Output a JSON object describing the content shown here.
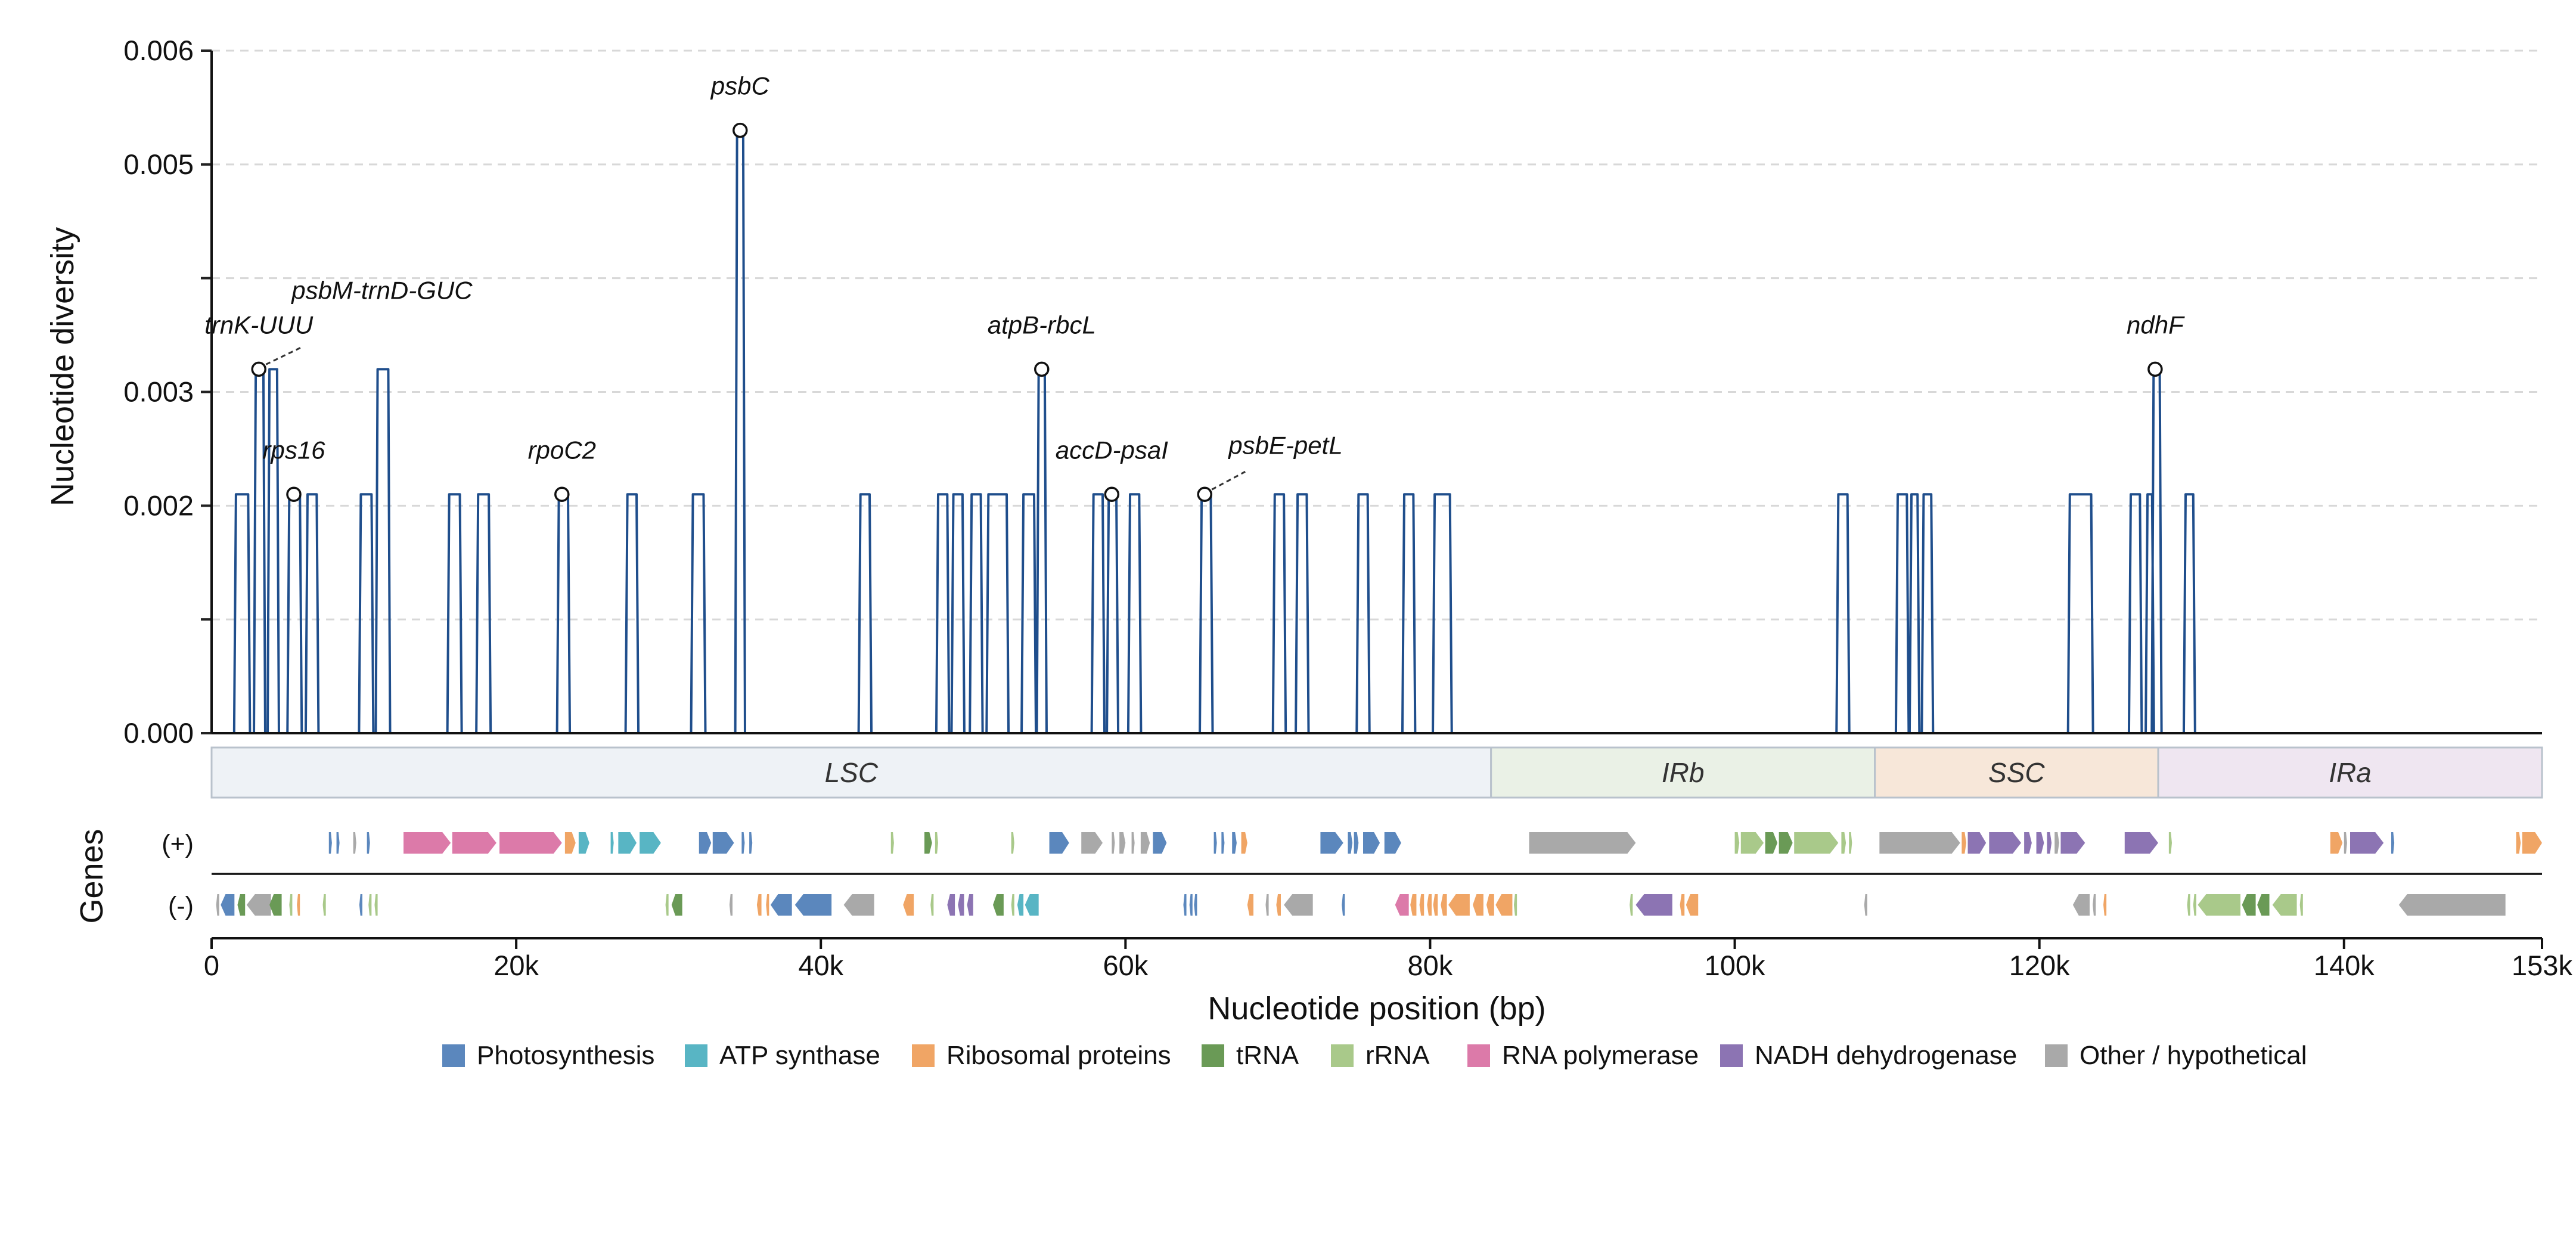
{
  "chart_data": {
    "type": "line",
    "ylabel": "Nucleotide diversity",
    "xlabel": "Nucleotide position (bp)",
    "xlim": [
      0,
      153000
    ],
    "ylim": [
      0,
      0.006
    ],
    "yticks": [
      0.0,
      0.001,
      0.002,
      0.003,
      0.004,
      0.005,
      0.006
    ],
    "ytick_labels": [
      "0.000",
      "",
      "0.002",
      "0.003",
      "",
      "0.005",
      "0.006"
    ],
    "xticks": [
      0,
      20000,
      40000,
      60000,
      80000,
      100000,
      120000,
      140000,
      153000
    ],
    "xtick_labels": [
      "0",
      "20k",
      "40k",
      "60k",
      "80k",
      "100k",
      "120k",
      "140k",
      "153k"
    ],
    "grid": "horizontal dashed",
    "series": [
      {
        "color": "#1f4e8c",
        "windows": [
          {
            "start": 1600,
            "end": 2400,
            "value": 0.0021
          },
          {
            "start": 2900,
            "end": 3400,
            "value": 0.0032
          },
          {
            "start": 3800,
            "end": 4300,
            "value": 0.0032
          },
          {
            "start": 5100,
            "end": 5800,
            "value": 0.0021
          },
          {
            "start": 6300,
            "end": 6900,
            "value": 0.0021
          },
          {
            "start": 9800,
            "end": 10500,
            "value": 0.0021
          },
          {
            "start": 10900,
            "end": 11600,
            "value": 0.0032
          },
          {
            "start": 15600,
            "end": 16300,
            "value": 0.0021
          },
          {
            "start": 17500,
            "end": 18200,
            "value": 0.0021
          },
          {
            "start": 22800,
            "end": 23400,
            "value": 0.0021
          },
          {
            "start": 27300,
            "end": 27900,
            "value": 0.0021
          },
          {
            "start": 31600,
            "end": 32300,
            "value": 0.0021
          },
          {
            "start": 34500,
            "end": 34900,
            "value": 0.0053
          },
          {
            "start": 42600,
            "end": 43200,
            "value": 0.0021
          },
          {
            "start": 47700,
            "end": 48300,
            "value": 0.0021
          },
          {
            "start": 48700,
            "end": 49300,
            "value": 0.0021
          },
          {
            "start": 49900,
            "end": 50500,
            "value": 0.0021
          },
          {
            "start": 51000,
            "end": 52200,
            "value": 0.0021
          },
          {
            "start": 53300,
            "end": 54000,
            "value": 0.0021
          },
          {
            "start": 54300,
            "end": 54700,
            "value": 0.0032
          },
          {
            "start": 57900,
            "end": 58500,
            "value": 0.0021
          },
          {
            "start": 58900,
            "end": 59400,
            "value": 0.0021
          },
          {
            "start": 60300,
            "end": 60900,
            "value": 0.0021
          },
          {
            "start": 65000,
            "end": 65600,
            "value": 0.0021
          },
          {
            "start": 69800,
            "end": 70400,
            "value": 0.0021
          },
          {
            "start": 71300,
            "end": 71900,
            "value": 0.0021
          },
          {
            "start": 75300,
            "end": 75900,
            "value": 0.0021
          },
          {
            "start": 78300,
            "end": 78900,
            "value": 0.0021
          },
          {
            "start": 80300,
            "end": 81300,
            "value": 0.0021
          },
          {
            "start": 106800,
            "end": 107400,
            "value": 0.0021
          },
          {
            "start": 110700,
            "end": 111300,
            "value": 0.0021
          },
          {
            "start": 111600,
            "end": 112000,
            "value": 0.0021
          },
          {
            "start": 112400,
            "end": 112900,
            "value": 0.0021
          },
          {
            "start": 122000,
            "end": 123400,
            "value": 0.0021
          },
          {
            "start": 126000,
            "end": 126600,
            "value": 0.0021
          },
          {
            "start": 127100,
            "end": 127400,
            "value": 0.0021
          },
          {
            "start": 127500,
            "end": 127900,
            "value": 0.0032
          },
          {
            "start": 129600,
            "end": 130100,
            "value": 0.0021
          }
        ]
      }
    ],
    "annotations": [
      {
        "text": "trnK-UUU",
        "x": 3100,
        "y": 0.0032,
        "leader": false
      },
      {
        "text": "psbM-trnD-GUC",
        "x": 11300,
        "y": 0.0032,
        "leader": true
      },
      {
        "text": "rps16",
        "x": 5400,
        "y": 0.0021,
        "leader": false
      },
      {
        "text": "rpoC2",
        "x": 23000,
        "y": 0.0021,
        "leader": false
      },
      {
        "text": "psbC",
        "x": 34700,
        "y": 0.0053,
        "leader": false
      },
      {
        "text": "atpB-rbcL",
        "x": 54500,
        "y": 0.0032,
        "leader": false
      },
      {
        "text": "accD-psaI",
        "x": 59100,
        "y": 0.0021,
        "leader": false
      },
      {
        "text": "psbE-petL",
        "x": 65200,
        "y": 0.0021,
        "leader": true
      },
      {
        "text": "ndhF",
        "x": 127600,
        "y": 0.0032,
        "leader": false
      }
    ],
    "regions": [
      {
        "name": "LSC",
        "start": 0,
        "end": 84000,
        "color": "#eef2f6"
      },
      {
        "name": "IRb",
        "start": 84000,
        "end": 109200,
        "color": "#eaf1e6"
      },
      {
        "name": "SSC",
        "start": 109200,
        "end": 127800,
        "color": "#f7e7d9"
      },
      {
        "name": "IRa",
        "start": 127800,
        "end": 153000,
        "color": "#efe6f1"
      }
    ],
    "genes_axis_label": "Genes",
    "strand_labels": [
      "(+)",
      "(-)"
    ],
    "gene_categories": [
      {
        "key": "photo",
        "name": "Photosynthesis",
        "color": "#5b87bd"
      },
      {
        "key": "atp",
        "name": "ATP synthase",
        "color": "#58b5c4"
      },
      {
        "key": "ribo",
        "name": "Ribosomal proteins",
        "color": "#f0a565"
      },
      {
        "key": "trna",
        "name": "tRNA",
        "color": "#6a9a56"
      },
      {
        "key": "rrna",
        "name": "rRNA",
        "color": "#a9c98a"
      },
      {
        "key": "rpo",
        "name": "RNA polymerase",
        "color": "#dc7aa9"
      },
      {
        "key": "ndh",
        "name": "NADH dehydrogenase",
        "color": "#8c74b3"
      },
      {
        "key": "other",
        "name": "Other / hypothetical",
        "color": "#a9a9a9"
      }
    ],
    "genes_plus": [
      {
        "start": 7700,
        "end": 7900,
        "cat": "photo"
      },
      {
        "start": 8200,
        "end": 8400,
        "cat": "photo"
      },
      {
        "start": 9300,
        "end": 9500,
        "cat": "other"
      },
      {
        "start": 10200,
        "end": 10400,
        "cat": "photo"
      },
      {
        "start": 12600,
        "end": 15700,
        "cat": "rpo"
      },
      {
        "start": 15800,
        "end": 18700,
        "cat": "rpo"
      },
      {
        "start": 18900,
        "end": 23000,
        "cat": "rpo"
      },
      {
        "start": 23200,
        "end": 23900,
        "cat": "ribo"
      },
      {
        "start": 24100,
        "end": 24800,
        "cat": "atp"
      },
      {
        "start": 26200,
        "end": 26400,
        "cat": "atp"
      },
      {
        "start": 26700,
        "end": 27900,
        "cat": "atp"
      },
      {
        "start": 28100,
        "end": 29500,
        "cat": "atp"
      },
      {
        "start": 32000,
        "end": 32800,
        "cat": "photo"
      },
      {
        "start": 32900,
        "end": 34300,
        "cat": "photo"
      },
      {
        "start": 34800,
        "end": 35000,
        "cat": "photo"
      },
      {
        "start": 35300,
        "end": 35500,
        "cat": "photo"
      },
      {
        "start": 44600,
        "end": 44800,
        "cat": "rrna"
      },
      {
        "start": 46800,
        "end": 47300,
        "cat": "trna"
      },
      {
        "start": 47500,
        "end": 47700,
        "cat": "rrna"
      },
      {
        "start": 52500,
        "end": 52700,
        "cat": "rrna"
      },
      {
        "start": 55000,
        "end": 56300,
        "cat": "photo"
      },
      {
        "start": 57100,
        "end": 58500,
        "cat": "other"
      },
      {
        "start": 59100,
        "end": 59300,
        "cat": "other"
      },
      {
        "start": 59600,
        "end": 60000,
        "cat": "other"
      },
      {
        "start": 60400,
        "end": 60600,
        "cat": "other"
      },
      {
        "start": 61000,
        "end": 61600,
        "cat": "other"
      },
      {
        "start": 61800,
        "end": 62700,
        "cat": "photo"
      },
      {
        "start": 65800,
        "end": 66000,
        "cat": "photo"
      },
      {
        "start": 66300,
        "end": 66500,
        "cat": "photo"
      },
      {
        "start": 67000,
        "end": 67300,
        "cat": "photo"
      },
      {
        "start": 67600,
        "end": 68000,
        "cat": "ribo"
      },
      {
        "start": 72800,
        "end": 74300,
        "cat": "photo"
      },
      {
        "start": 74600,
        "end": 74900,
        "cat": "photo"
      },
      {
        "start": 75000,
        "end": 75300,
        "cat": "photo"
      },
      {
        "start": 75600,
        "end": 76700,
        "cat": "photo"
      },
      {
        "start": 77000,
        "end": 78100,
        "cat": "photo"
      },
      {
        "start": 86500,
        "end": 93500,
        "cat": "other"
      },
      {
        "start": 100000,
        "end": 100300,
        "cat": "rrna"
      },
      {
        "start": 100400,
        "end": 101900,
        "cat": "rrna"
      },
      {
        "start": 102000,
        "end": 102800,
        "cat": "trna"
      },
      {
        "start": 102900,
        "end": 103800,
        "cat": "trna"
      },
      {
        "start": 103900,
        "end": 106800,
        "cat": "rrna"
      },
      {
        "start": 107000,
        "end": 107300,
        "cat": "rrna"
      },
      {
        "start": 107500,
        "end": 107700,
        "cat": "rrna"
      },
      {
        "start": 109500,
        "end": 114800,
        "cat": "other"
      },
      {
        "start": 114900,
        "end": 115200,
        "cat": "ribo"
      },
      {
        "start": 115300,
        "end": 116500,
        "cat": "ndh"
      },
      {
        "start": 116700,
        "end": 118800,
        "cat": "ndh"
      },
      {
        "start": 119000,
        "end": 119500,
        "cat": "ndh"
      },
      {
        "start": 119800,
        "end": 120300,
        "cat": "ndh"
      },
      {
        "start": 120500,
        "end": 120800,
        "cat": "ndh"
      },
      {
        "start": 121000,
        "end": 121300,
        "cat": "other"
      },
      {
        "start": 121400,
        "end": 123000,
        "cat": "ndh"
      },
      {
        "start": 125600,
        "end": 127800,
        "cat": "ndh"
      },
      {
        "start": 128500,
        "end": 128700,
        "cat": "rrna"
      },
      {
        "start": 139100,
        "end": 139900,
        "cat": "ribo"
      },
      {
        "start": 140000,
        "end": 140200,
        "cat": "other"
      },
      {
        "start": 140400,
        "end": 142600,
        "cat": "ndh"
      },
      {
        "start": 143100,
        "end": 143300,
        "cat": "photo"
      },
      {
        "start": 151300,
        "end": 151600,
        "cat": "ribo"
      },
      {
        "start": 151700,
        "end": 153000,
        "cat": "ribo"
      }
    ],
    "genes_minus": [
      {
        "start": 300,
        "end": 500,
        "cat": "other"
      },
      {
        "start": 600,
        "end": 1500,
        "cat": "photo"
      },
      {
        "start": 1700,
        "end": 2200,
        "cat": "trna"
      },
      {
        "start": 2300,
        "end": 3900,
        "cat": "other"
      },
      {
        "start": 3800,
        "end": 4600,
        "cat": "trna"
      },
      {
        "start": 5100,
        "end": 5300,
        "cat": "rrna"
      },
      {
        "start": 5600,
        "end": 5800,
        "cat": "ribo"
      },
      {
        "start": 7300,
        "end": 7500,
        "cat": "rrna"
      },
      {
        "start": 9700,
        "end": 9900,
        "cat": "photo"
      },
      {
        "start": 10300,
        "end": 10500,
        "cat": "rrna"
      },
      {
        "start": 10700,
        "end": 10900,
        "cat": "rrna"
      },
      {
        "start": 29800,
        "end": 30000,
        "cat": "rrna"
      },
      {
        "start": 30200,
        "end": 30900,
        "cat": "trna"
      },
      {
        "start": 34000,
        "end": 34200,
        "cat": "other"
      },
      {
        "start": 35800,
        "end": 36100,
        "cat": "ribo"
      },
      {
        "start": 36400,
        "end": 36600,
        "cat": "ribo"
      },
      {
        "start": 36700,
        "end": 38100,
        "cat": "photo"
      },
      {
        "start": 38300,
        "end": 40700,
        "cat": "photo"
      },
      {
        "start": 41500,
        "end": 43500,
        "cat": "other"
      },
      {
        "start": 45400,
        "end": 46100,
        "cat": "ribo"
      },
      {
        "start": 47200,
        "end": 47400,
        "cat": "rrna"
      },
      {
        "start": 48300,
        "end": 48800,
        "cat": "ndh"
      },
      {
        "start": 49000,
        "end": 49400,
        "cat": "ndh"
      },
      {
        "start": 49600,
        "end": 50000,
        "cat": "ndh"
      },
      {
        "start": 51300,
        "end": 52000,
        "cat": "trna"
      },
      {
        "start": 52500,
        "end": 52700,
        "cat": "rrna"
      },
      {
        "start": 52900,
        "end": 53300,
        "cat": "atp"
      },
      {
        "start": 53400,
        "end": 54300,
        "cat": "atp"
      },
      {
        "start": 63800,
        "end": 64000,
        "cat": "photo"
      },
      {
        "start": 64200,
        "end": 64400,
        "cat": "photo"
      },
      {
        "start": 64500,
        "end": 64700,
        "cat": "photo"
      },
      {
        "start": 68000,
        "end": 68400,
        "cat": "ribo"
      },
      {
        "start": 69200,
        "end": 69400,
        "cat": "other"
      },
      {
        "start": 69900,
        "end": 70200,
        "cat": "ribo"
      },
      {
        "start": 70400,
        "end": 72300,
        "cat": "other"
      },
      {
        "start": 74200,
        "end": 74400,
        "cat": "photo"
      },
      {
        "start": 77700,
        "end": 78600,
        "cat": "rpo"
      },
      {
        "start": 78700,
        "end": 79100,
        "cat": "ribo"
      },
      {
        "start": 79300,
        "end": 79600,
        "cat": "ribo"
      },
      {
        "start": 79800,
        "end": 80100,
        "cat": "ribo"
      },
      {
        "start": 80200,
        "end": 80500,
        "cat": "ribo"
      },
      {
        "start": 80700,
        "end": 81100,
        "cat": "ribo"
      },
      {
        "start": 81200,
        "end": 82600,
        "cat": "ribo"
      },
      {
        "start": 82800,
        "end": 83500,
        "cat": "ribo"
      },
      {
        "start": 83700,
        "end": 84200,
        "cat": "ribo"
      },
      {
        "start": 84300,
        "end": 85400,
        "cat": "ribo"
      },
      {
        "start": 85500,
        "end": 85700,
        "cat": "rrna"
      },
      {
        "start": 93100,
        "end": 93300,
        "cat": "rrna"
      },
      {
        "start": 93500,
        "end": 95900,
        "cat": "ndh"
      },
      {
        "start": 96400,
        "end": 96700,
        "cat": "ribo"
      },
      {
        "start": 96800,
        "end": 97600,
        "cat": "ribo"
      },
      {
        "start": 108500,
        "end": 108700,
        "cat": "other"
      },
      {
        "start": 122200,
        "end": 123300,
        "cat": "other"
      },
      {
        "start": 123500,
        "end": 123700,
        "cat": "other"
      },
      {
        "start": 124200,
        "end": 124400,
        "cat": "ribo"
      },
      {
        "start": 129700,
        "end": 129900,
        "cat": "rrna"
      },
      {
        "start": 130100,
        "end": 130300,
        "cat": "rrna"
      },
      {
        "start": 130400,
        "end": 133200,
        "cat": "rrna"
      },
      {
        "start": 133300,
        "end": 134200,
        "cat": "trna"
      },
      {
        "start": 134300,
        "end": 135100,
        "cat": "trna"
      },
      {
        "start": 135300,
        "end": 136900,
        "cat": "rrna"
      },
      {
        "start": 137100,
        "end": 137300,
        "cat": "rrna"
      },
      {
        "start": 143600,
        "end": 150600,
        "cat": "other"
      }
    ]
  }
}
